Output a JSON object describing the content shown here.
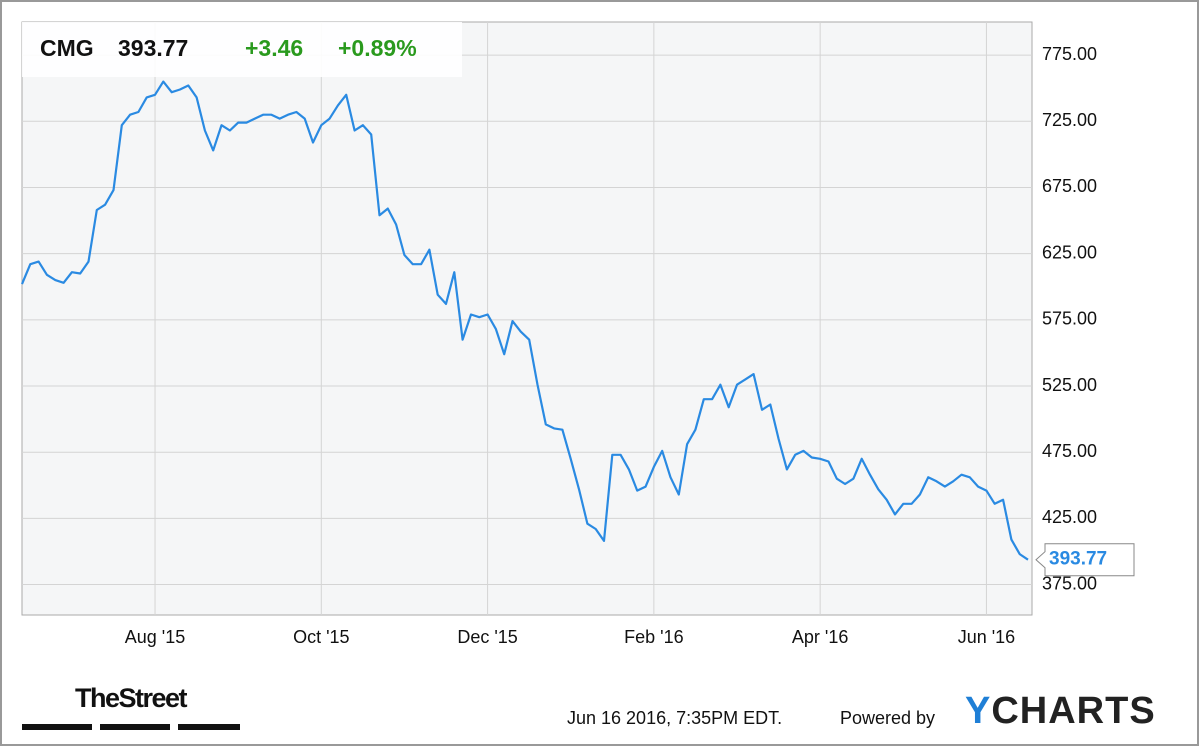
{
  "chart_data": {
    "type": "line",
    "ticker": "CMG",
    "price": "393.77",
    "change": "+3.46",
    "change_pct": "+0.89%",
    "color": "#2a8ae2",
    "grid": true,
    "categories": [
      null,
      null,
      null,
      null,
      null,
      null,
      null,
      null,
      null,
      null,
      null,
      null,
      null,
      null,
      null,
      null,
      "Aug '15",
      null,
      null,
      null,
      null,
      null,
      null,
      null,
      null,
      null,
      null,
      null,
      null,
      null,
      null,
      null,
      null,
      null,
      null,
      null,
      "Oct '15",
      null,
      null,
      null,
      null,
      null,
      null,
      null,
      null,
      null,
      null,
      null,
      null,
      null,
      null,
      null,
      null,
      null,
      null,
      null,
      "Dec '15",
      null,
      null,
      null,
      null,
      null,
      null,
      null,
      null,
      null,
      null,
      null,
      null,
      null,
      null,
      null,
      null,
      null,
      null,
      null,
      "Feb '16",
      null,
      null,
      null,
      null,
      null,
      null,
      null,
      null,
      null,
      null,
      null,
      null,
      null,
      null,
      null,
      null,
      null,
      null,
      null,
      "Apr '16",
      null,
      null,
      null,
      null,
      null,
      null,
      null,
      null,
      null,
      null,
      null,
      null,
      null,
      null,
      null,
      null,
      null,
      null,
      null,
      "Jun '16",
      null,
      null,
      null,
      null,
      null
    ],
    "values": [
      602,
      617,
      619,
      609,
      605,
      603,
      611,
      610,
      619,
      658,
      662,
      673,
      722,
      730,
      732,
      743,
      745,
      755,
      747,
      749,
      752,
      743,
      718,
      703,
      722,
      718,
      724,
      724,
      727,
      730,
      730,
      727,
      730,
      732,
      727,
      709,
      722,
      727,
      737,
      745,
      718,
      722,
      715,
      654,
      659,
      647,
      624,
      617,
      617,
      628,
      594,
      587,
      611,
      560,
      579,
      577,
      579,
      568,
      549,
      574,
      566,
      560,
      526,
      496,
      493,
      492,
      470,
      447,
      421,
      417,
      408,
      473,
      473,
      462,
      446,
      449,
      464,
      476,
      456,
      443,
      481,
      492,
      515,
      515,
      526,
      509,
      526,
      530,
      534,
      507,
      511,
      485,
      462,
      473,
      476,
      471,
      470,
      468,
      455,
      451,
      455,
      470,
      458,
      447,
      439,
      428,
      436,
      436,
      443,
      456,
      453,
      449,
      453,
      458,
      456,
      449,
      446,
      436,
      439,
      409,
      398,
      393.77
    ],
    "ylim": [
      352,
      800
    ],
    "yticks": [
      {
        "value": 375,
        "label": "375.00"
      },
      {
        "value": 425,
        "label": "425.00"
      },
      {
        "value": 475,
        "label": "475.00"
      },
      {
        "value": 525,
        "label": "525.00"
      },
      {
        "value": 575,
        "label": "575.00"
      },
      {
        "value": 625,
        "label": "625.00"
      },
      {
        "value": 675,
        "label": "675.00"
      },
      {
        "value": 725,
        "label": "725.00"
      },
      {
        "value": 775,
        "label": "775.00"
      }
    ],
    "footer": {
      "brand": "TheStreet",
      "timestamp": "Jun 16 2016, 7:35PM EDT.",
      "powered": "Powered by",
      "provider": "YCHARTS"
    }
  }
}
